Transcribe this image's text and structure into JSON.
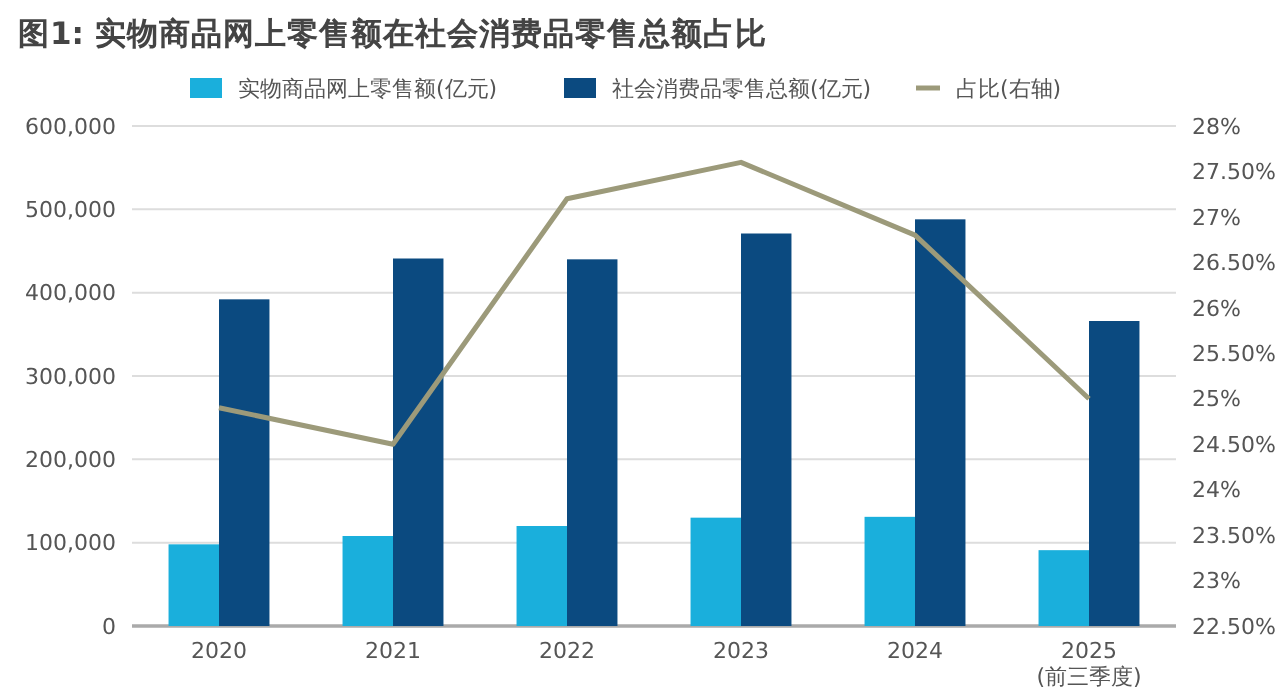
{
  "chart_data": {
    "type": "bar",
    "title": "图1: 实物商品网上零售额在社会消费品零售总额占比",
    "categories": [
      "2020",
      "2021",
      "2022",
      "2023",
      "2024",
      "2025\n(前三季度)"
    ],
    "series": [
      {
        "name": "实物商品网上零售额(亿元)",
        "color": "#1aafdc",
        "values": [
          98000,
          108000,
          120000,
          130000,
          131000,
          91000
        ]
      },
      {
        "name": "社会消费品零售总额(亿元)",
        "color": "#0b4a80",
        "values": [
          392000,
          441000,
          440000,
          471000,
          488000,
          366000
        ]
      },
      {
        "name": "占比(右轴)",
        "type": "line",
        "axis": "y2",
        "color": "#9c9a7a",
        "values": [
          24.9,
          24.5,
          27.2,
          27.6,
          26.8,
          25.0
        ]
      }
    ],
    "ylim": [
      0,
      600000
    ],
    "yticks": [
      {
        "value": 0,
        "label": "0"
      },
      {
        "value": 100000,
        "label": "100,000"
      },
      {
        "value": 200000,
        "label": "200,000"
      },
      {
        "value": 300000,
        "label": "300,000"
      },
      {
        "value": 400000,
        "label": "400,000"
      },
      {
        "value": 500000,
        "label": "500,000"
      },
      {
        "value": 600000,
        "label": "600,000"
      }
    ],
    "y2lim": [
      22.5,
      28
    ],
    "y2ticks": [
      {
        "value": 22.5,
        "label": "22.50%"
      },
      {
        "value": 23,
        "label": "23%"
      },
      {
        "value": 23.5,
        "label": "23.50%"
      },
      {
        "value": 24,
        "label": "24%"
      },
      {
        "value": 24.5,
        "label": "24.50%"
      },
      {
        "value": 25,
        "label": "25%"
      },
      {
        "value": 25.5,
        "label": "25.50%"
      },
      {
        "value": 26,
        "label": "26%"
      },
      {
        "value": 26.5,
        "label": "26.50%"
      },
      {
        "value": 27,
        "label": "27%"
      },
      {
        "value": 27.5,
        "label": "27.50%"
      },
      {
        "value": 28,
        "label": "28%"
      }
    ],
    "grid": "y",
    "legend": "top",
    "marker": "none"
  }
}
